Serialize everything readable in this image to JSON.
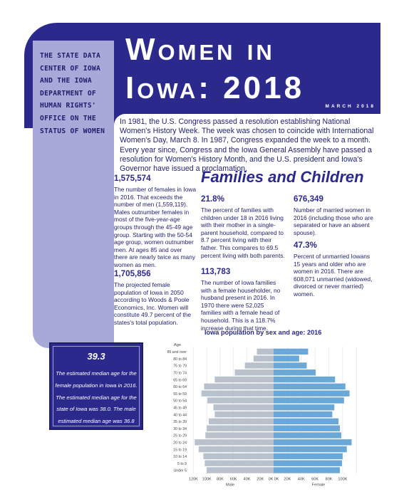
{
  "sidebar_text": "THE STATE DATA CENTER OF IOWA AND THE IOWA DEPARTMENT OF HUMAN RIGHTS' OFFICE ON THE STATUS OF WOMEN",
  "title_line1": "Women in",
  "title_line2": "Iowa: 2018",
  "date": "MARCH 2018",
  "intro": "In 1981, the U.S. Congress passed a resolution establishing National Women's History Week. The week was chosen to coincide with International Women's Day, March 8. In 1987, Congress expanded the week to a month. Every year since, Congress and the Iowa General Assembly have passed a resolution for Women's History Month, and the U.S. president  and Iowa's Governor have issued a proclamation.",
  "families_title": "Families and Children",
  "stats": {
    "females_num": "1,575,574",
    "females_text": "The number of females in Iowa in 2016. That exceeds the number of men (1,559,119). Males outnumber females in most of the five-year-age groups through the 45-49 age group. Starting with the 50-54 age group, women outnumber men. At ages 85 and over there are nearly twice as many women as men.",
    "projected_num": "1,705,856",
    "projected_text": "The projected female population of Iowa in 2050 according to Woods & Poole Economics, Inc. Women will constitute 49.7 percent of the states's total population.",
    "single_mother_num": "21.8%",
    "single_mother_text": "The percent of families with children under 18 in 2016 living with their mother in a single-parent household, compared to 8.7 percent living with their father. This compares to 69.5 percent living with both parents.",
    "female_householder_num": "113,783",
    "female_householder_text": "The number of Iowa families with a female householder, no husband present in 2016. In 1970 there were 52,025 families with a female head of household. This is a 118.7% increase during that time.",
    "married_num": "676,349",
    "married_text": "Number of married women in 2016 (including those who are separated or have an absent spouse).",
    "unmarried_num": "47.3%",
    "unmarried_text": "Percent of unmarried Iowans 15 years and older who are women in 2016. There are 608,071 unmarried (widowed, divorced or never married) women."
  },
  "median": {
    "num": "39.3",
    "text": "The estimated median age for the female population in Iowa in 2016. The estimated median age for the state of Iowa was 38.0. The male estimated median age was 36.8"
  },
  "chart_data": {
    "type": "bar",
    "orientation": "horizontal-population-pyramid",
    "title": "Iowa population by sex and age: 2016",
    "y_axis_title": "Age",
    "categories": [
      "85 and over",
      "80 to 84",
      "75 to 79",
      "70 to 74",
      "65 to 69",
      "60 to 64",
      "55 to 59",
      "50 to 54",
      "45 to 49",
      "40 to 44",
      "35 to 39",
      "30 to 34",
      "25 to 29",
      "20 to 24",
      "15 to 19",
      "10 to 14",
      "5 to 9",
      "Under 5"
    ],
    "series": [
      {
        "name": "Male",
        "color": "#b8c1cc",
        "values": [
          25000,
          30000,
          43000,
          58000,
          88000,
          104000,
          108000,
          99000,
          90000,
          88000,
          97000,
          100000,
          102000,
          118000,
          112000,
          105000,
          103000,
          100000
        ]
      },
      {
        "name": "Female",
        "color": "#6aa8d8",
        "values": [
          50000,
          37000,
          48000,
          61000,
          89000,
          104000,
          110000,
          102000,
          88000,
          85000,
          94000,
          96000,
          98000,
          113000,
          106000,
          100000,
          99000,
          96000
        ]
      }
    ],
    "x_ticks_left": [
      "120K",
      "100K",
      "80K",
      "60K",
      "40K",
      "20K",
      "0K"
    ],
    "x_ticks_right": [
      "0K",
      "20K",
      "40K",
      "60K",
      "80K",
      "100K"
    ],
    "xlim": [
      0,
      130000
    ],
    "xlabel_left": "Male",
    "xlabel_right": "Female"
  },
  "colors": {
    "navy": "#2b2a8c",
    "lavender": "#a9a9d9",
    "male": "#b8c1cc",
    "female": "#6aa8d8"
  }
}
